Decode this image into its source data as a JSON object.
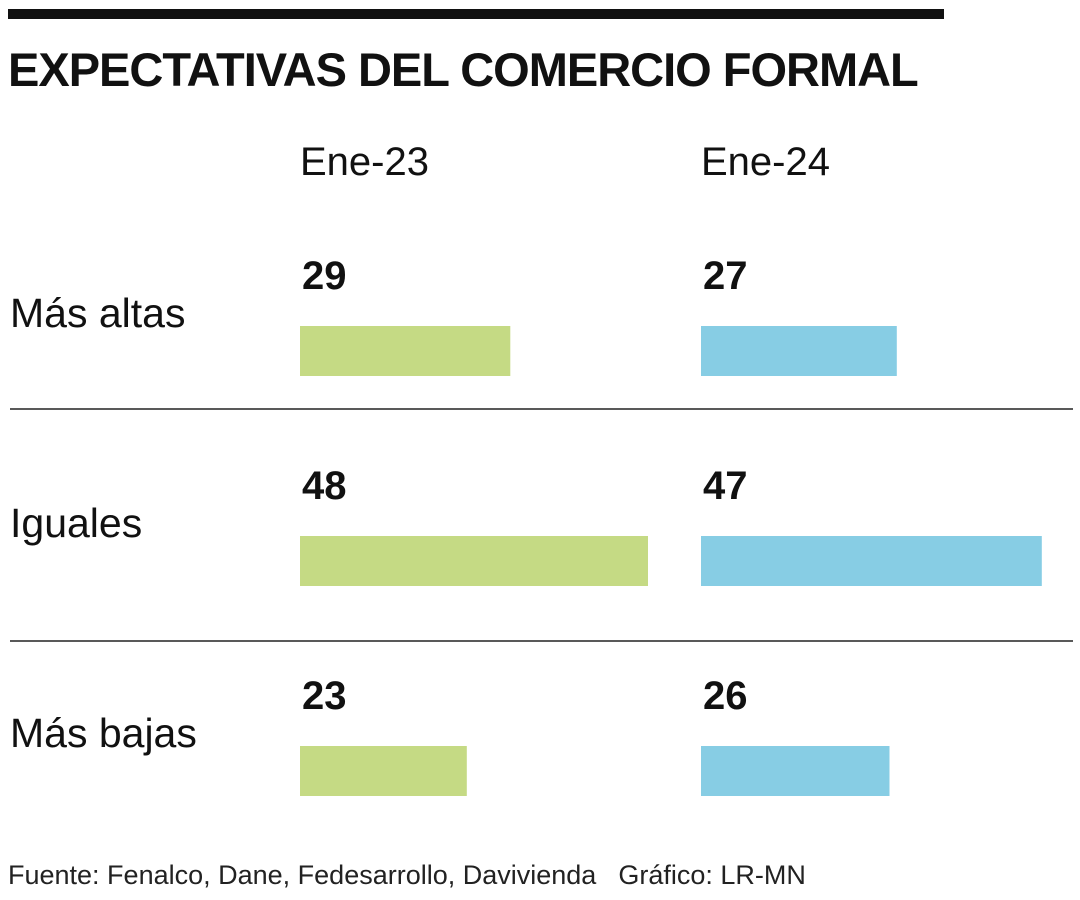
{
  "title": "EXPECTATIVAS DEL COMERCIO FORMAL",
  "source": "Fuente: Fenalco, Dane, Fedesarrollo, Davivienda",
  "credit": "Gráfico: LR-MN",
  "colors": {
    "ene23": "#c5da84",
    "ene24": "#87cde4",
    "text": "#111111",
    "divider": "#222222"
  },
  "chart_data": {
    "type": "bar",
    "orientation": "horizontal",
    "categories": [
      "Más altas",
      "Iguales",
      "Más bajas"
    ],
    "series": [
      {
        "name": "Ene-23",
        "values": [
          29,
          48,
          23
        ],
        "color": "#c5da84"
      },
      {
        "name": "Ene-24",
        "values": [
          27,
          47,
          26
        ],
        "color": "#87cde4"
      }
    ],
    "title": "EXPECTATIVAS DEL COMERCIO FORMAL",
    "xlabel": "",
    "ylabel": "",
    "grid": false,
    "legend": "none"
  }
}
